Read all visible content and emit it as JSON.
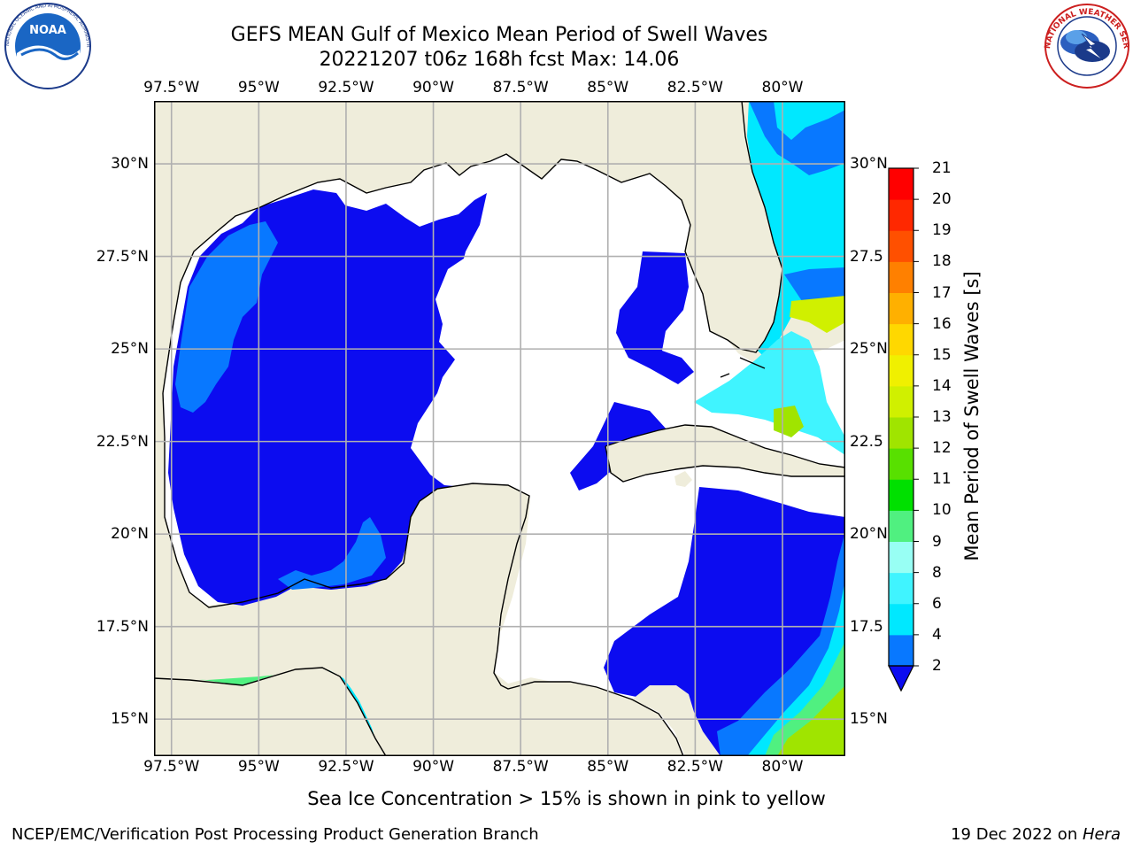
{
  "title": {
    "line1": "GEFS MEAN Gulf of Mexico Mean Period of Swell Waves",
    "line2": "20221207 t06z 168h fcst   Max: 14.06"
  },
  "logos": {
    "noaa_text": "NOAA",
    "noaa_ring": "NATIONAL OCEANIC AND ATMOSPHERIC ADMINISTRATION · U.S. DEPARTMENT OF COMMERCE",
    "nws_ring": "NATIONAL WEATHER SERVICE"
  },
  "map": {
    "lon_range": [
      -98.0,
      -78.2
    ],
    "lat_range": [
      14.0,
      31.7
    ],
    "lon_ticks": [
      {
        "value": -97.5,
        "label": "97.5°W"
      },
      {
        "value": -95.0,
        "label": "95°W"
      },
      {
        "value": -92.5,
        "label": "92.5°W"
      },
      {
        "value": -90.0,
        "label": "90°W"
      },
      {
        "value": -87.5,
        "label": "87.5°W"
      },
      {
        "value": -85.0,
        "label": "85°W"
      },
      {
        "value": -82.5,
        "label": "82.5°W"
      },
      {
        "value": -80.0,
        "label": "80°W"
      }
    ],
    "lat_ticks_left": [
      {
        "value": 30.0,
        "label": "30°N"
      },
      {
        "value": 27.5,
        "label": "27.5°N"
      },
      {
        "value": 25.0,
        "label": "25°N"
      },
      {
        "value": 22.5,
        "label": "22.5°N"
      },
      {
        "value": 20.0,
        "label": "20°N"
      },
      {
        "value": 17.5,
        "label": "17.5°N"
      },
      {
        "value": 15.0,
        "label": "15°N"
      }
    ],
    "lat_ticks_right": [
      {
        "value": 30.0,
        "label": "30°N"
      },
      {
        "value": 27.5,
        "label": "27.5"
      },
      {
        "value": 25.0,
        "label": "25°N"
      },
      {
        "value": 22.5,
        "label": "22.5"
      },
      {
        "value": 20.0,
        "label": "20°N"
      },
      {
        "value": 17.5,
        "label": "17.5"
      },
      {
        "value": 15.0,
        "label": "15°N"
      }
    ],
    "colors": {
      "land": "#efeddb",
      "no_swell": "#ffffff",
      "grid": "#b0b0b0"
    }
  },
  "colorbar": {
    "label": "Mean Period of Swell Waves [s]",
    "ticks": [
      "2",
      "4",
      "6",
      "8",
      "9",
      "10",
      "11",
      "12",
      "13",
      "14",
      "15",
      "16",
      "17",
      "18",
      "19",
      "20",
      "21"
    ],
    "colors": [
      "#0c0cf0",
      "#0878ff",
      "#00e8ff",
      "#40f4ff",
      "#98fff4",
      "#50f080",
      "#00e000",
      "#58e000",
      "#a0e400",
      "#d0f000",
      "#f0f000",
      "#ffd800",
      "#ffb000",
      "#ff8000",
      "#ff5000",
      "#ff2800",
      "#ff0000"
    ]
  },
  "subtitle": "Sea Ice Concentration > 15% is shown in pink to yellow",
  "footer": {
    "left": "NCEP/EMC/Verification Post Processing Product Generation Branch",
    "right_date": "19 Dec 2022 on ",
    "right_host": "Hera"
  }
}
